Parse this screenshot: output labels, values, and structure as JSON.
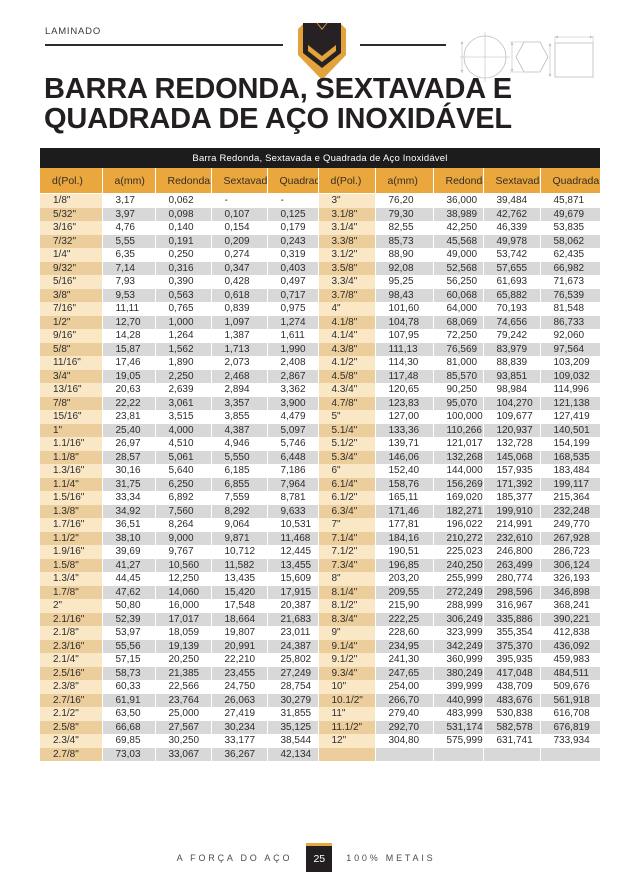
{
  "page": {
    "category_label": "LAMINADO",
    "title_line1": "BARRA REDONDA, SEXTAVADA E",
    "title_line2": "QUADRADA DE AÇO INOXIDÁVEL"
  },
  "icons": {
    "logo": "brand-shield-m-logo",
    "round": "round-bar-cross-section-diagram",
    "hexagon": "hexagonal-bar-cross-section-diagram",
    "square": "square-bar-cross-section-diagram"
  },
  "table": {
    "caption": "Barra Redonda, Sextavada e Quadrada de Aço Inoxidável",
    "headers": [
      "d(Pol.)",
      "a(mm)",
      "Redonda",
      "Sextavada",
      "Quadrada",
      "d(Pol.)",
      "a(mm)",
      "Redonda",
      "Sextavada",
      "Quadrada"
    ],
    "rows": [
      [
        "1/8\"",
        "3,17",
        "0,062",
        "-",
        "-",
        "3\"",
        "76,20",
        "36,000",
        "39,484",
        "45,871"
      ],
      [
        "5/32\"",
        "3,97",
        "0,098",
        "0,107",
        "0,125",
        "3.1/8\"",
        "79,30",
        "38,989",
        "42,762",
        "49,679"
      ],
      [
        "3/16\"",
        "4,76",
        "0,140",
        "0,154",
        "0,179",
        "3.1/4\"",
        "82,55",
        "42,250",
        "46,339",
        "53,835"
      ],
      [
        "7/32\"",
        "5,55",
        "0,191",
        "0,209",
        "0,243",
        "3.3/8\"",
        "85,73",
        "45,568",
        "49,978",
        "58,062"
      ],
      [
        "1/4\"",
        "6,35",
        "0,250",
        "0,274",
        "0,319",
        "3.1/2\"",
        "88,90",
        "49,000",
        "53,742",
        "62,435"
      ],
      [
        "9/32\"",
        "7,14",
        "0,316",
        "0,347",
        "0,403",
        "3.5/8\"",
        "92,08",
        "52,568",
        "57,655",
        "66,982"
      ],
      [
        "5/16\"",
        "7,93",
        "0,390",
        "0,428",
        "0,497",
        "3.3/4\"",
        "95,25",
        "56,250",
        "61,693",
        "71,673"
      ],
      [
        "3/8\"",
        "9,53",
        "0,563",
        "0,618",
        "0,717",
        "3.7/8\"",
        "98,43",
        "60,068",
        "65,882",
        "76,539"
      ],
      [
        "7/16\"",
        "11,11",
        "0,765",
        "0,839",
        "0,975",
        "4\"",
        "101,60",
        "64,000",
        "70,193",
        "81,548"
      ],
      [
        "1/2\"",
        "12,70",
        "1,000",
        "1,097",
        "1,274",
        "4.1/8\"",
        "104,78",
        "68,069",
        "74,656",
        "86,733"
      ],
      [
        "9/16\"",
        "14,28",
        "1,264",
        "1,387",
        "1,611",
        "4.1/4\"",
        "107,95",
        "72,250",
        "79,242",
        "92,060"
      ],
      [
        "5/8\"",
        "15,87",
        "1,562",
        "1,713",
        "1,990",
        "4.3/8\"",
        "111,13",
        "76,569",
        "83,979",
        "97,564"
      ],
      [
        "11/16\"",
        "17,46",
        "1,890",
        "2,073",
        "2,408",
        "4.1/2\"",
        "114,30",
        "81,000",
        "88,839",
        "103,209"
      ],
      [
        "3/4\"",
        "19,05",
        "2,250",
        "2,468",
        "2,867",
        "4.5/8\"",
        "117,48",
        "85,570",
        "93,851",
        "109,032"
      ],
      [
        "13/16\"",
        "20,63",
        "2,639",
        "2,894",
        "3,362",
        "4.3/4\"",
        "120,65",
        "90,250",
        "98,984",
        "114,996"
      ],
      [
        "7/8\"",
        "22,22",
        "3,061",
        "3,357",
        "3,900",
        "4.7/8\"",
        "123,83",
        "95,070",
        "104,270",
        "121,138"
      ],
      [
        "15/16\"",
        "23,81",
        "3,515",
        "3,855",
        "4,479",
        "5\"",
        "127,00",
        "100,000",
        "109,677",
        "127,419"
      ],
      [
        "1\"",
        "25,40",
        "4,000",
        "4,387",
        "5,097",
        "5.1/4\"",
        "133,36",
        "110,266",
        "120,937",
        "140,501"
      ],
      [
        "1.1/16\"",
        "26,97",
        "4,510",
        "4,946",
        "5,746",
        "5.1/2\"",
        "139,71",
        "121,017",
        "132,728",
        "154,199"
      ],
      [
        "1.1/8\"",
        "28,57",
        "5,061",
        "5,550",
        "6,448",
        "5.3/4\"",
        "146,06",
        "132,268",
        "145,068",
        "168,535"
      ],
      [
        "1.3/16\"",
        "30,16",
        "5,640",
        "6,185",
        "7,186",
        "6\"",
        "152,40",
        "144,000",
        "157,935",
        "183,484"
      ],
      [
        "1.1/4\"",
        "31,75",
        "6,250",
        "6,855",
        "7,964",
        "6.1/4\"",
        "158,76",
        "156,269",
        "171,392",
        "199,117"
      ],
      [
        "1.5/16\"",
        "33,34",
        "6,892",
        "7,559",
        "8,781",
        "6.1/2\"",
        "165,11",
        "169,020",
        "185,377",
        "215,364"
      ],
      [
        "1.3/8\"",
        "34,92",
        "7,560",
        "8,292",
        "9,633",
        "6.3/4\"",
        "171,46",
        "182,271",
        "199,910",
        "232,248"
      ],
      [
        "1.7/16\"",
        "36,51",
        "8,264",
        "9,064",
        "10,531",
        "7\"",
        "177,81",
        "196,022",
        "214,991",
        "249,770"
      ],
      [
        "1.1/2\"",
        "38,10",
        "9,000",
        "9,871",
        "11,468",
        "7.1/4\"",
        "184,16",
        "210,272",
        "232,610",
        "267,928"
      ],
      [
        "1.9/16\"",
        "39,69",
        "9,767",
        "10,712",
        "12,445",
        "7.1/2\"",
        "190,51",
        "225,023",
        "246,800",
        "286,723"
      ],
      [
        "1.5/8\"",
        "41,27",
        "10,560",
        "11,582",
        "13,455",
        "7.3/4\"",
        "196,85",
        "240,250",
        "263,499",
        "306,124"
      ],
      [
        "1.3/4\"",
        "44,45",
        "12,250",
        "13,435",
        "15,609",
        "8\"",
        "203,20",
        "255,999",
        "280,774",
        "326,193"
      ],
      [
        "1.7/8\"",
        "47,62",
        "14,060",
        "15,420",
        "17,915",
        "8.1/4\"",
        "209,55",
        "272,249",
        "298,596",
        "346,898"
      ],
      [
        "2\"",
        "50,80",
        "16,000",
        "17,548",
        "20,387",
        "8.1/2\"",
        "215,90",
        "288,999",
        "316,967",
        "368,241"
      ],
      [
        "2.1/16\"",
        "52,39",
        "17,017",
        "18,664",
        "21,683",
        "8.3/4\"",
        "222,25",
        "306,249",
        "335,886",
        "390,221"
      ],
      [
        "2.1/8\"",
        "53,97",
        "18,059",
        "19,807",
        "23,011",
        "9\"",
        "228,60",
        "323,999",
        "355,354",
        "412,838"
      ],
      [
        "2.3/16\"",
        "55,56",
        "19,139",
        "20,991",
        "24,387",
        "9.1/4\"",
        "234,95",
        "342,249",
        "375,370",
        "436,092"
      ],
      [
        "2.1/4\"",
        "57,15",
        "20,250",
        "22,210",
        "25,802",
        "9.1/2\"",
        "241,30",
        "360,999",
        "395,935",
        "459,983"
      ],
      [
        "2.5/16\"",
        "58,73",
        "21,385",
        "23,455",
        "27,249",
        "9.3/4\"",
        "247,65",
        "380,249",
        "417,048",
        "484,511"
      ],
      [
        "2.3/8\"",
        "60,33",
        "22,566",
        "24,750",
        "28,754",
        "10\"",
        "254,00",
        "399,999",
        "438,709",
        "509,676"
      ],
      [
        "2.7/16\"",
        "61,91",
        "23,764",
        "26,063",
        "30,279",
        "10.1/2\"",
        "266,70",
        "440,999",
        "483,676",
        "561,918"
      ],
      [
        "2.1/2\"",
        "63,50",
        "25,000",
        "27,419",
        "31,855",
        "11\"",
        "279,40",
        "483,999",
        "530,838",
        "616,708"
      ],
      [
        "2.5/8\"",
        "66,68",
        "27,567",
        "30,234",
        "35,125",
        "11.1/2\"",
        "292,70",
        "531,174",
        "582,578",
        "676,819"
      ],
      [
        "2.3/4\"",
        "69,85",
        "30,250",
        "33,177",
        "38,544",
        "12\"",
        "304,80",
        "575,999",
        "631,741",
        "733,934"
      ],
      [
        "2.7/8\"",
        "73,03",
        "33,067",
        "36,267",
        "42,134",
        "",
        "",
        "",
        "",
        ""
      ]
    ]
  },
  "footer": {
    "tagline_left": "A FORÇA DO AÇO",
    "page_number": "25",
    "tagline_right": "100% METAIS"
  },
  "colors": {
    "accent_gold": "#E9A73E",
    "ink_dark": "#231F20",
    "caption_bar_bg": "#1C1C1C",
    "row_alt_gray": "#D8D8D8",
    "pol_col_light": "#F9E7C6",
    "pol_col_dark": "#ECCE9C"
  }
}
